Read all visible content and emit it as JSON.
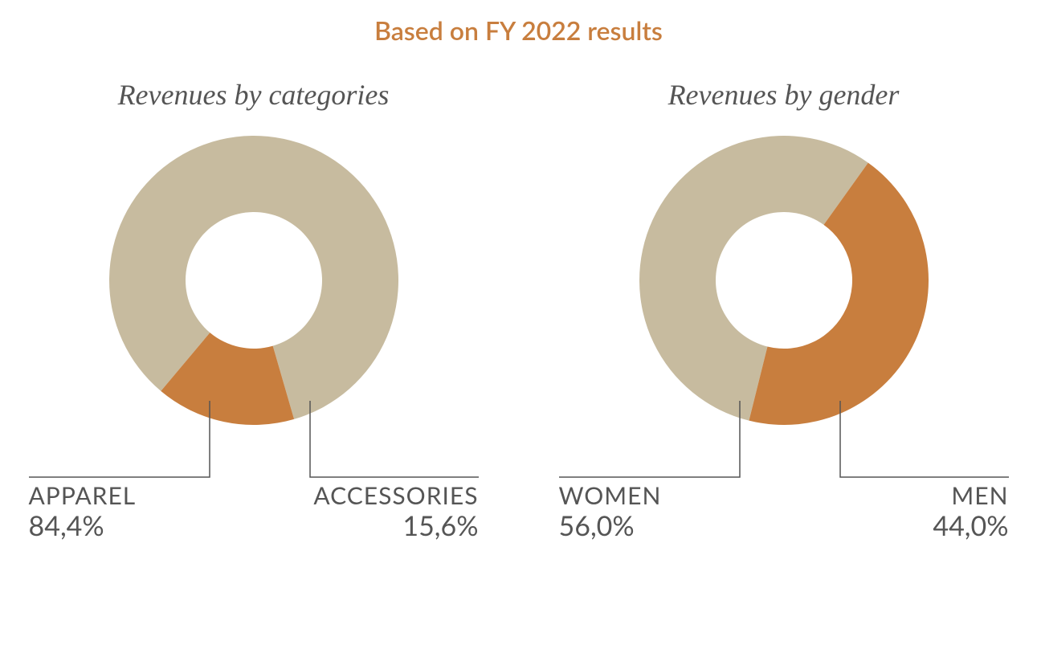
{
  "page": {
    "title": "Based on FY 2022 results",
    "title_color": "#c87e3e",
    "background_color": "#ffffff",
    "text_color": "#555555",
    "leader_color": "#555555",
    "leader_width": 1.5
  },
  "charts": [
    {
      "title": "Revenues by categories",
      "type": "donut",
      "title_fontsize": 36,
      "title_color": "#555555",
      "title_fontstyle": "italic",
      "outer_radius": 180,
      "inner_radius": 85,
      "start_angle_deg": -140,
      "slices": [
        {
          "label": "APPAREL",
          "value_text": "84,4%",
          "value": 84.4,
          "color": "#c7bb9f",
          "label_side": "left"
        },
        {
          "label": "ACCESSORIES",
          "value_text": "15,6%",
          "value": 15.6,
          "color": "#c87e3e",
          "label_side": "right"
        }
      ],
      "label_fontsize": 30,
      "value_fontsize": 34,
      "label_color": "#555555"
    },
    {
      "title": "Revenues by gender",
      "type": "donut",
      "title_fontsize": 36,
      "title_color": "#555555",
      "title_fontstyle": "italic",
      "outer_radius": 180,
      "inner_radius": 85,
      "start_angle_deg": -166,
      "slices": [
        {
          "label": "WOMEN",
          "value_text": "56,0%",
          "value": 56.0,
          "color": "#c7bb9f",
          "label_side": "left"
        },
        {
          "label": "MEN",
          "value_text": "44,0%",
          "value": 44.0,
          "color": "#c87e3e",
          "label_side": "right"
        }
      ],
      "label_fontsize": 30,
      "value_fontsize": 34,
      "label_color": "#555555"
    }
  ]
}
